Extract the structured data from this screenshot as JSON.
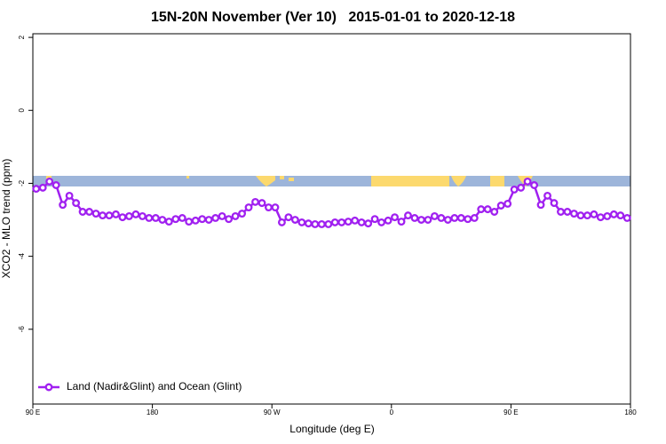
{
  "chart_data": {
    "type": "line",
    "title": "15N-20N November (Ver 10)   2015-01-01 to 2020-12-18",
    "xlabel": "Longitude (deg E)",
    "ylabel": "XCO2 - MLO trend (ppm)",
    "x": [
      92.5,
      97.5,
      102.5,
      107.5,
      112.5,
      117.5,
      122.5,
      127.5,
      132.5,
      137.5,
      142.5,
      147.5,
      152.5,
      157.5,
      162.5,
      167.5,
      172.5,
      177.5,
      182.5,
      187.5,
      192.5,
      197.5,
      202.5,
      207.5,
      212.5,
      217.5,
      222.5,
      227.5,
      232.5,
      237.5,
      242.5,
      247.5,
      252.5,
      257.5,
      262.5,
      267.5,
      272.5,
      277.5,
      282.5,
      287.5,
      292.5,
      297.5,
      302.5,
      307.5,
      312.5,
      317.5,
      322.5,
      327.5,
      332.5,
      337.5,
      342.5,
      347.5,
      352.5,
      357.5,
      362.5,
      367.5,
      372.5,
      377.5,
      382.5,
      387.5,
      392.5,
      397.5,
      402.5,
      407.5,
      412.5,
      417.5,
      422.5,
      427.5,
      432.5,
      437.5,
      442.5,
      447.5,
      452.5,
      457.5,
      462.5,
      467.5,
      472.5,
      477.5,
      482.5,
      487.5,
      492.5,
      497.5,
      502.5,
      507.5,
      512.5,
      517.5,
      522.5,
      527.5,
      532.5,
      537.5
    ],
    "series": [
      {
        "name": "Land (Nadir&Glint) and Ocean (Glint)",
        "color": "#a020f0",
        "values": [
          -2.15,
          -2.12,
          -1.95,
          -2.05,
          -2.59,
          -2.34,
          -2.54,
          -2.78,
          -2.78,
          -2.83,
          -2.88,
          -2.88,
          -2.85,
          -2.93,
          -2.9,
          -2.85,
          -2.9,
          -2.95,
          -2.95,
          -3.0,
          -3.05,
          -2.98,
          -2.95,
          -3.05,
          -3.02,
          -2.98,
          -3.0,
          -2.95,
          -2.9,
          -2.98,
          -2.9,
          -2.83,
          -2.66,
          -2.51,
          -2.54,
          -2.66,
          -2.66,
          -3.07,
          -2.93,
          -3.0,
          -3.07,
          -3.1,
          -3.12,
          -3.12,
          -3.12,
          -3.07,
          -3.07,
          -3.05,
          -3.02,
          -3.07,
          -3.1,
          -2.98,
          -3.07,
          -3.02,
          -2.93,
          -3.05,
          -2.88,
          -2.95,
          -3.0,
          -3.0,
          -2.9,
          -2.95,
          -3.0,
          -2.95,
          -2.95,
          -2.98,
          -2.95,
          -2.71,
          -2.71,
          -2.78,
          -2.61,
          -2.56,
          -2.17,
          -2.12,
          -1.95,
          -2.05,
          -2.59,
          -2.34,
          -2.54,
          -2.78,
          -2.78,
          -2.83,
          -2.88,
          -2.88,
          -2.85,
          -2.93,
          -2.9,
          -2.85,
          -2.88,
          -2.95
        ]
      }
    ],
    "xlim": [
      90,
      540
    ],
    "xticks": [
      {
        "value": 90,
        "label": "90 E"
      },
      180,
      {
        "value": 270,
        "label": "90 W"
      },
      {
        "value": 360,
        "label": "0"
      },
      {
        "value": 450,
        "label": "90 E"
      },
      {
        "value": 540,
        "label": "180"
      }
    ],
    "ylim": [
      -8.05,
      2.1
    ],
    "yticks": [
      2,
      0,
      -2,
      -4,
      -6
    ],
    "legend": "bottom-left"
  }
}
